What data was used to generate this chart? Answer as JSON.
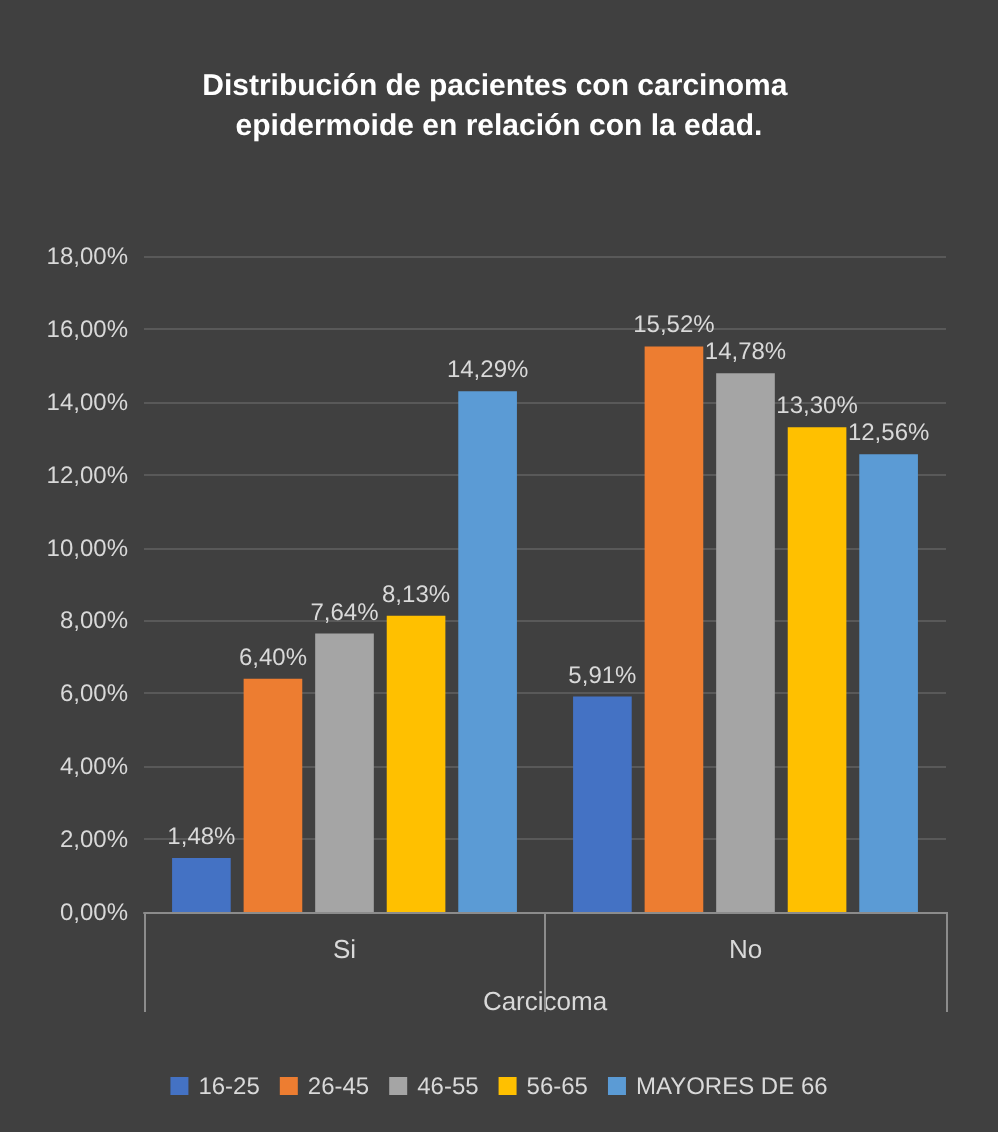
{
  "chart_data": {
    "type": "bar",
    "title": "Distribución de pacientes con carcinoma epidermoide en relación con la edad.",
    "xlabel": "Carcicoma",
    "categories": [
      "Si",
      "No"
    ],
    "series": [
      {
        "name": "16-25",
        "color": "#4472c4",
        "values": [
          1.48,
          5.91
        ],
        "value_labels": [
          "1,48%",
          "5,91%"
        ]
      },
      {
        "name": "26-45",
        "color": "#ed7d31",
        "values": [
          6.4,
          15.52
        ],
        "value_labels": [
          "6,40%",
          "15,52%"
        ]
      },
      {
        "name": "46-55",
        "color": "#a5a5a5",
        "values": [
          7.64,
          14.78
        ],
        "value_labels": [
          "7,64%",
          "14,78%"
        ]
      },
      {
        "name": "56-65",
        "color": "#ffc000",
        "values": [
          8.13,
          13.3
        ],
        "value_labels": [
          "8,13%",
          "13,30%"
        ]
      },
      {
        "name": "MAYORES DE 66",
        "color": "#5b9bd5",
        "values": [
          14.29,
          12.56
        ],
        "value_labels": [
          "14,29%",
          "12,56%"
        ]
      }
    ],
    "ylim": [
      0,
      18
    ],
    "yticks": [
      {
        "value": 0,
        "label": "0,00%"
      },
      {
        "value": 2,
        "label": "2,00%"
      },
      {
        "value": 4,
        "label": "4,00%"
      },
      {
        "value": 6,
        "label": "6,00%"
      },
      {
        "value": 8,
        "label": "8,00%"
      },
      {
        "value": 10,
        "label": "10,00%"
      },
      {
        "value": 12,
        "label": "12,00%"
      },
      {
        "value": 14,
        "label": "14,00%"
      },
      {
        "value": 16,
        "label": "16,00%"
      },
      {
        "value": 18,
        "label": "18,00%"
      }
    ],
    "grid": "y",
    "legend": "bottom"
  }
}
